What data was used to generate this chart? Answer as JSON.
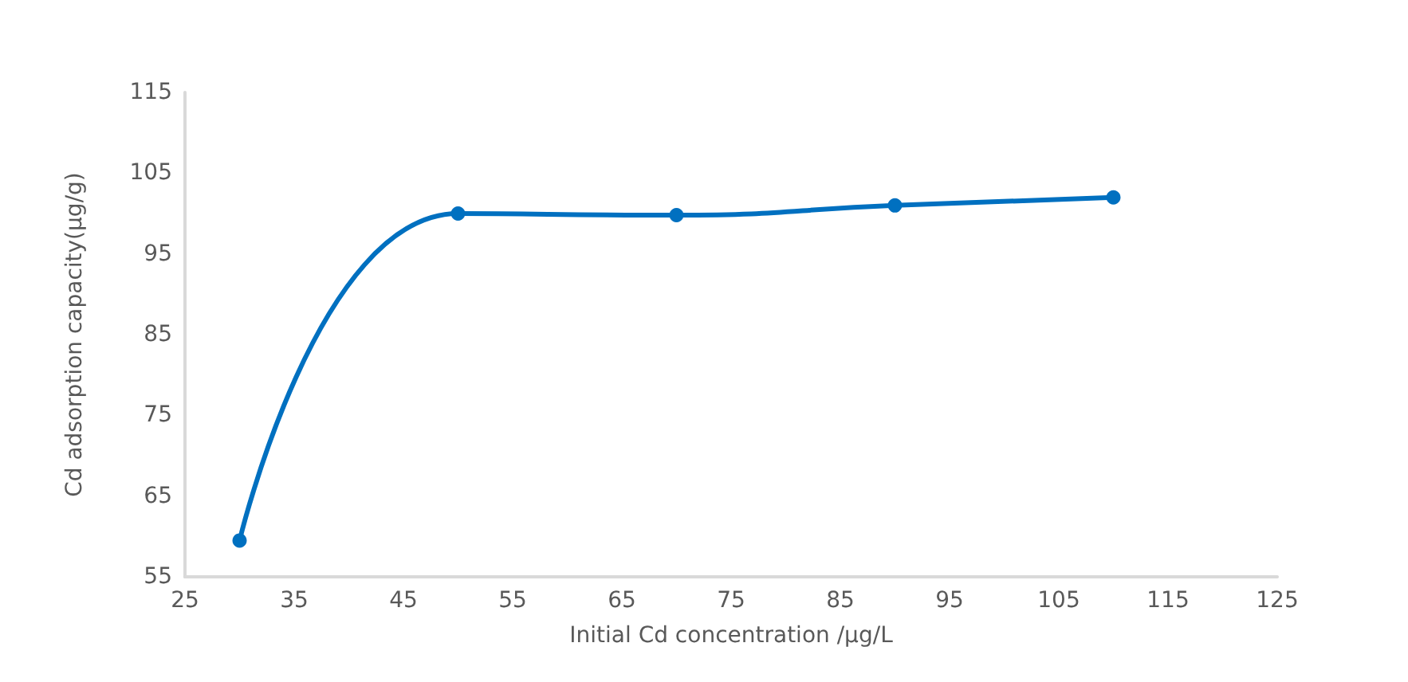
{
  "chart_data": {
    "type": "line",
    "xlabel": "Initial Cd concentration /μg/L",
    "ylabel": "Cd adsorption capacity(μg/g)",
    "x": [
      30,
      50,
      70,
      90,
      110
    ],
    "series": [
      {
        "color": "#0070c0",
        "values": [
          59.5,
          100,
          99.8,
          101,
          102
        ]
      }
    ],
    "xlim": [
      25,
      125
    ],
    "xticks": [
      25,
      35,
      45,
      55,
      65,
      75,
      85,
      95,
      105,
      115,
      125
    ],
    "ylim": [
      55,
      115
    ],
    "yticks": [
      55,
      65,
      75,
      85,
      95,
      105,
      115
    ],
    "grid": false,
    "marker": "circle",
    "line_style": "solid"
  }
}
